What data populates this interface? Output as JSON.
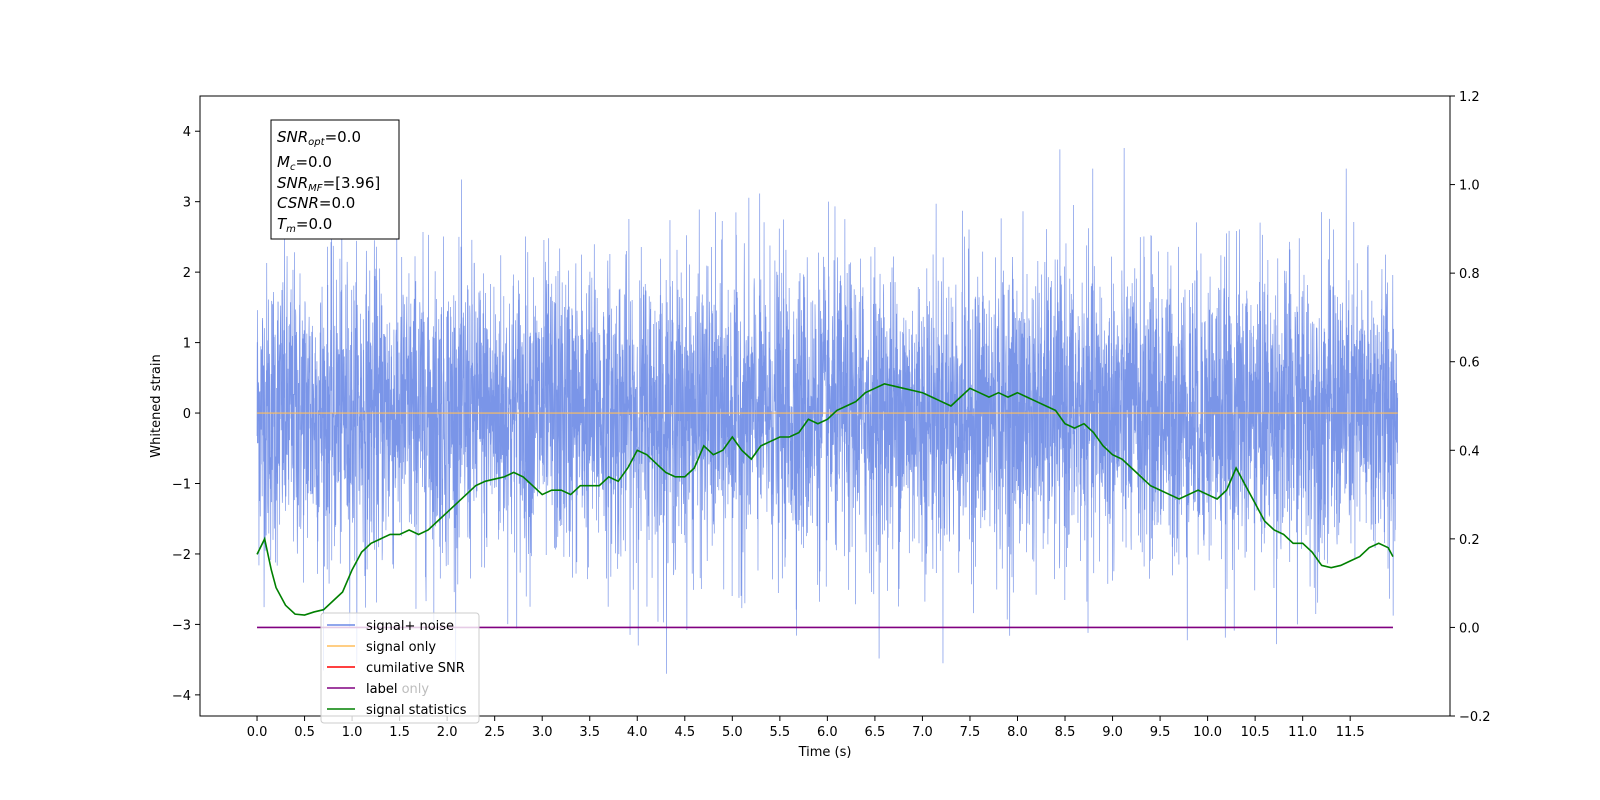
{
  "chart_data": {
    "type": "line",
    "xlabel": "Time (s)",
    "ylabel": "Whitened strain",
    "xlim": [
      -0.6,
      12.55
    ],
    "ylim": [
      -4.3,
      4.5
    ],
    "y2lim": [
      -0.2,
      1.2
    ],
    "x_ticks": [
      "0.0",
      "0.5",
      "1.0",
      "1.5",
      "2.0",
      "2.5",
      "3.0",
      "3.5",
      "4.0",
      "4.5",
      "5.0",
      "5.5",
      "6.0",
      "6.5",
      "7.0",
      "7.5",
      "8.0",
      "8.5",
      "9.0",
      "9.5",
      "10.0",
      "10.5",
      "11.0",
      "11.5"
    ],
    "y_ticks": [
      "−4",
      "−3",
      "−2",
      "−1",
      "0",
      "1",
      "2",
      "3",
      "4"
    ],
    "y2_ticks": [
      "−0.2",
      "0.0",
      "0.2",
      "0.4",
      "0.6",
      "0.8",
      "1.0",
      "1.2"
    ],
    "annotation": [
      "SNR_opt=0.0",
      "M_c=0.0",
      "SNR_MF=[3.96]",
      "CSNR=0.0",
      "T_m=0.0"
    ],
    "legend_location": "lower-left",
    "legend": [
      "signal+ noise",
      "signal only",
      "cumilative SNR",
      "label",
      "signal statistics"
    ],
    "hidden_legend_text": "label only",
    "colors": {
      "signal_noise": "#6b8ae6",
      "signal_only": "#ffbe5c",
      "cumulative_snr": "#ff0000",
      "label": "#800080",
      "signal_statistics": "#008000"
    },
    "series": [
      {
        "name": "signal+ noise",
        "axis": "left",
        "x_start": 0.0,
        "x_end": 12.0,
        "y_min": -3.7,
        "y_max": 4.1,
        "note_values": "whitened Gaussian noise, sigma about 1"
      },
      {
        "name": "signal only",
        "axis": "left",
        "x": [
          0.0,
          12.0
        ],
        "y": [
          0.0,
          0.0
        ]
      },
      {
        "name": "label",
        "axis": "right",
        "x": [
          0.0,
          11.95
        ],
        "y": [
          0.0,
          0.0
        ]
      },
      {
        "name": "signal statistics",
        "axis": "right",
        "x": [
          0.0,
          0.08,
          0.15,
          0.2,
          0.3,
          0.4,
          0.5,
          0.6,
          0.7,
          0.8,
          0.9,
          1.0,
          1.1,
          1.2,
          1.3,
          1.4,
          1.5,
          1.6,
          1.7,
          1.8,
          1.9,
          2.0,
          2.1,
          2.2,
          2.3,
          2.4,
          2.5,
          2.6,
          2.7,
          2.8,
          2.9,
          3.0,
          3.1,
          3.2,
          3.3,
          3.4,
          3.5,
          3.6,
          3.7,
          3.8,
          3.9,
          4.0,
          4.1,
          4.2,
          4.3,
          4.4,
          4.5,
          4.6,
          4.7,
          4.8,
          4.9,
          5.0,
          5.1,
          5.2,
          5.3,
          5.4,
          5.5,
          5.6,
          5.7,
          5.8,
          5.9,
          6.0,
          6.1,
          6.2,
          6.3,
          6.4,
          6.5,
          6.6,
          6.7,
          6.8,
          6.9,
          7.0,
          7.1,
          7.2,
          7.3,
          7.4,
          7.5,
          7.6,
          7.7,
          7.8,
          7.9,
          8.0,
          8.1,
          8.2,
          8.3,
          8.4,
          8.5,
          8.6,
          8.7,
          8.8,
          8.9,
          9.0,
          9.1,
          9.2,
          9.3,
          9.4,
          9.5,
          9.6,
          9.7,
          9.8,
          9.9,
          10.0,
          10.1,
          10.2,
          10.3,
          10.4,
          10.5,
          10.6,
          10.7,
          10.8,
          10.9,
          11.0,
          11.1,
          11.2,
          11.3,
          11.4,
          11.5,
          11.6,
          11.7,
          11.8,
          11.9,
          11.95
        ],
        "y": [
          0.165,
          0.2,
          0.13,
          0.09,
          0.05,
          0.03,
          0.028,
          0.035,
          0.04,
          0.06,
          0.08,
          0.13,
          0.17,
          0.19,
          0.2,
          0.21,
          0.21,
          0.22,
          0.21,
          0.22,
          0.24,
          0.26,
          0.28,
          0.3,
          0.32,
          0.33,
          0.335,
          0.34,
          0.35,
          0.34,
          0.32,
          0.3,
          0.31,
          0.31,
          0.3,
          0.32,
          0.32,
          0.32,
          0.34,
          0.33,
          0.36,
          0.4,
          0.39,
          0.37,
          0.35,
          0.34,
          0.34,
          0.36,
          0.41,
          0.39,
          0.4,
          0.43,
          0.4,
          0.38,
          0.41,
          0.42,
          0.43,
          0.43,
          0.44,
          0.47,
          0.46,
          0.47,
          0.49,
          0.5,
          0.51,
          0.53,
          0.54,
          0.55,
          0.545,
          0.54,
          0.535,
          0.53,
          0.52,
          0.51,
          0.5,
          0.52,
          0.54,
          0.53,
          0.52,
          0.53,
          0.52,
          0.53,
          0.52,
          0.51,
          0.5,
          0.49,
          0.46,
          0.45,
          0.46,
          0.44,
          0.41,
          0.39,
          0.38,
          0.36,
          0.34,
          0.32,
          0.31,
          0.3,
          0.29,
          0.3,
          0.31,
          0.3,
          0.29,
          0.31,
          0.36,
          0.32,
          0.28,
          0.24,
          0.22,
          0.21,
          0.19,
          0.19,
          0.17,
          0.14,
          0.135,
          0.14,
          0.15,
          0.16,
          0.18,
          0.19,
          0.18,
          0.16
        ]
      }
    ]
  }
}
